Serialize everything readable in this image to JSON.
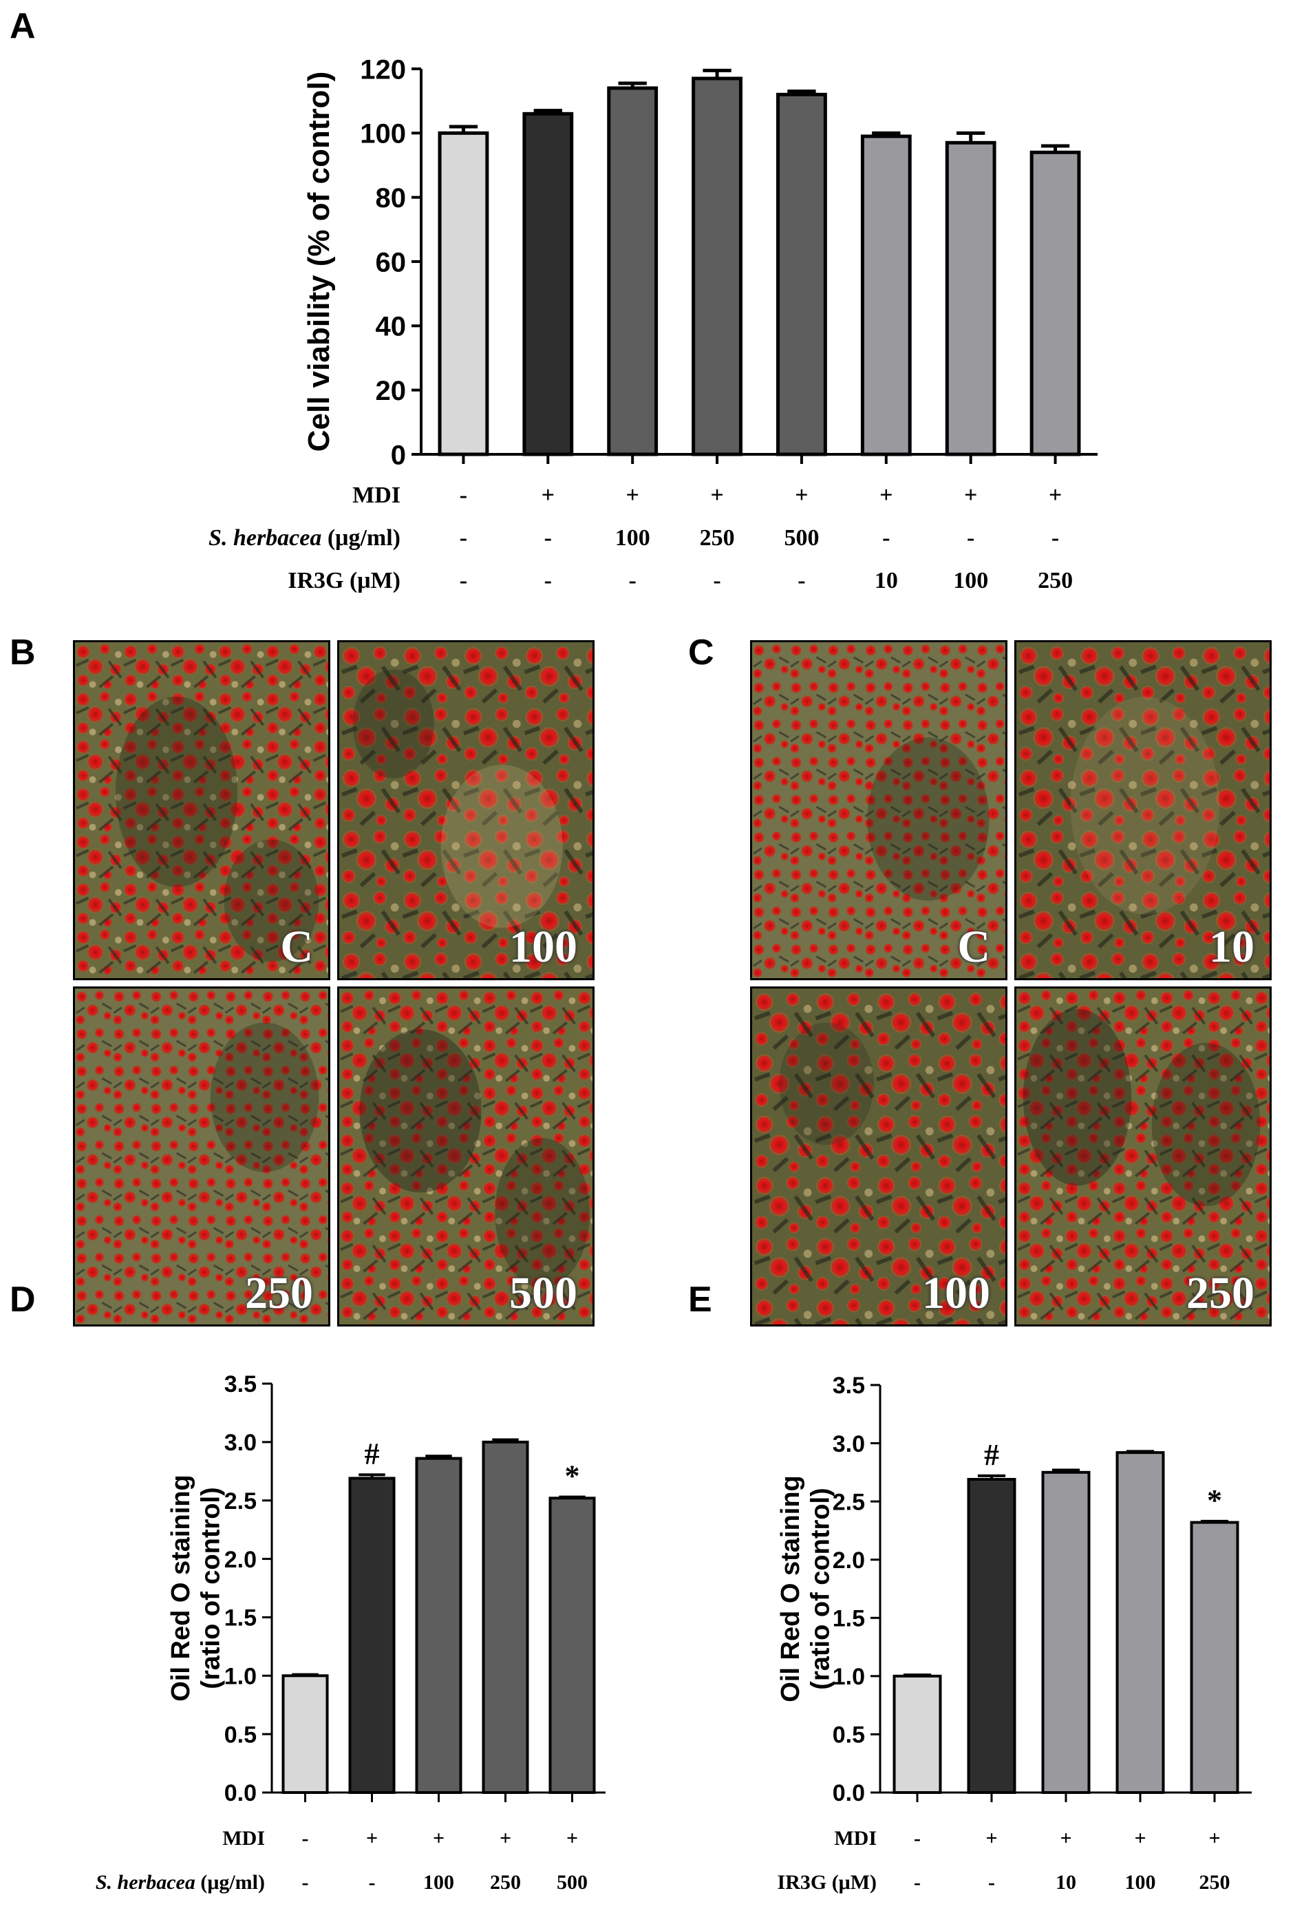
{
  "panels": {
    "a": "A",
    "b": "B",
    "c": "C",
    "d": "D",
    "e": "E"
  },
  "chart_data": [
    {
      "id": "A",
      "type": "bar",
      "title": "",
      "ylabel": "Cell viability (% of control)",
      "ylim": [
        0,
        120
      ],
      "yticks": [
        "0",
        "20",
        "40",
        "60",
        "80",
        "100",
        "120"
      ],
      "values": [
        100,
        106,
        114,
        117,
        112,
        99,
        97,
        94
      ],
      "errors": [
        2,
        1,
        1.5,
        2.5,
        1,
        1,
        3,
        2
      ],
      "colors": [
        "#d8d8d8",
        "#2e2e2e",
        "#5e5e5e",
        "#5e5e5e",
        "#5e5e5e",
        "#9a9a9e",
        "#9a9a9e",
        "#9a9a9e"
      ],
      "rows": [
        {
          "label": "MDI",
          "values": [
            "-",
            "+",
            "+",
            "+",
            "+",
            "+",
            "+",
            "+"
          ]
        },
        {
          "label_italic": "S. herbacea",
          "label_rest": " (μg/ml)",
          "values": [
            "-",
            "-",
            "100",
            "250",
            "500",
            "-",
            "-",
            "-"
          ]
        },
        {
          "label": "IR3G (μM)",
          "values": [
            "-",
            "-",
            "-",
            "-",
            "-",
            "10",
            "100",
            "250"
          ]
        }
      ],
      "annotations": []
    },
    {
      "id": "D",
      "type": "bar",
      "ylabel_line1": "Oil Red O staining",
      "ylabel_line2": "(ratio of control)",
      "ylim": [
        0,
        3.5
      ],
      "yticks": [
        "0.0",
        "0.5",
        "1.0",
        "1.5",
        "2.0",
        "2.5",
        "3.0",
        "3.5"
      ],
      "values": [
        1.0,
        2.69,
        2.86,
        3.0,
        2.52
      ],
      "errors": [
        0.01,
        0.03,
        0.02,
        0.02,
        0.01
      ],
      "colors": [
        "#d8d8d8",
        "#2e2e2e",
        "#5e5e5e",
        "#5e5e5e",
        "#5e5e5e"
      ],
      "annotations": [
        "",
        "#",
        "",
        "",
        "*"
      ],
      "rows": [
        {
          "label": "MDI",
          "values": [
            "-",
            "+",
            "+",
            "+",
            "+"
          ]
        },
        {
          "label_italic": "S. herbacea",
          "label_rest": " (μg/ml)",
          "values": [
            "-",
            "-",
            "100",
            "250",
            "500"
          ]
        }
      ]
    },
    {
      "id": "E",
      "type": "bar",
      "ylabel_line1": "Oil Red O staining",
      "ylabel_line2": "(ratio of control)",
      "ylim": [
        0,
        3.5
      ],
      "yticks": [
        "0.0",
        "0.5",
        "1.0",
        "1.5",
        "2.0",
        "2.5",
        "3.0",
        "3.5"
      ],
      "values": [
        1.0,
        2.69,
        2.75,
        2.92,
        2.32
      ],
      "errors": [
        0.01,
        0.03,
        0.02,
        0.01,
        0.01
      ],
      "colors": [
        "#d8d8d8",
        "#2e2e2e",
        "#9a9a9e",
        "#9a9a9e",
        "#9a9a9e"
      ],
      "annotations": [
        "",
        "#",
        "",
        "",
        "*"
      ],
      "rows": [
        {
          "label": "MDI",
          "values": [
            "-",
            "+",
            "+",
            "+",
            "+"
          ]
        },
        {
          "label": "IR3G (μM)",
          "values": [
            "-",
            "-",
            "10",
            "100",
            "250"
          ]
        }
      ]
    }
  ],
  "micrographs_b": [
    "C",
    "100",
    "250",
    "500"
  ],
  "micrographs_c": [
    "C",
    "10",
    "100",
    "250"
  ]
}
